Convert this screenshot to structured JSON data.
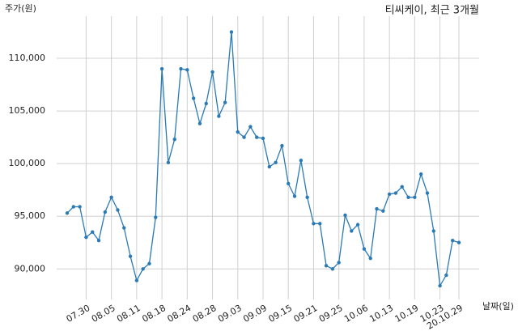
{
  "chart_data": {
    "type": "line",
    "title": "티씨케이, 최근 3개월",
    "y_label": "주가(원)",
    "x_label": "날짜(일)",
    "categories": [
      null,
      null,
      null,
      "07.30",
      null,
      null,
      null,
      "08.05",
      null,
      null,
      null,
      "08.11",
      null,
      null,
      null,
      "08.18",
      null,
      null,
      null,
      "08.24",
      null,
      null,
      null,
      "08.28",
      null,
      null,
      null,
      "09.03",
      null,
      null,
      null,
      "09.09",
      null,
      null,
      null,
      "09.15",
      null,
      null,
      null,
      "09.21",
      null,
      null,
      null,
      "09.25",
      null,
      null,
      null,
      "10.06",
      null,
      null,
      null,
      "10.13",
      null,
      null,
      null,
      "10.19",
      null,
      null,
      null,
      "10.23",
      null,
      null,
      "20.10.29"
    ],
    "series": [
      {
        "name": "티씨케이",
        "color": "#2a7ab5",
        "values": [
          95300,
          95900,
          95900,
          93000,
          93500,
          92700,
          95400,
          96800,
          95600,
          93900,
          91200,
          88900,
          90000,
          90500,
          94900,
          109000,
          100100,
          102300,
          109000,
          108900,
          106200,
          103800,
          105700,
          108700,
          104500,
          105800,
          112500,
          103000,
          102500,
          103500,
          102500,
          102400,
          99700,
          100100,
          101700,
          98100,
          96900,
          100300,
          96800,
          94300,
          94300,
          90300,
          90000,
          90600,
          95100,
          93600,
          94200,
          91900,
          91000,
          95700,
          95500,
          97100,
          97200,
          97800,
          96800,
          96800,
          99000,
          97200,
          93600,
          88400,
          89400,
          92700,
          92500
        ]
      }
    ],
    "ylim": [
      87100,
      114000
    ],
    "yticks": [
      {
        "value": 90000,
        "label": "90,000"
      },
      {
        "value": 95000,
        "label": "95,000"
      },
      {
        "value": 100000,
        "label": "100,000"
      },
      {
        "value": 105000,
        "label": "105,000"
      },
      {
        "value": 110000,
        "label": "110,000"
      }
    ],
    "grid": true
  }
}
